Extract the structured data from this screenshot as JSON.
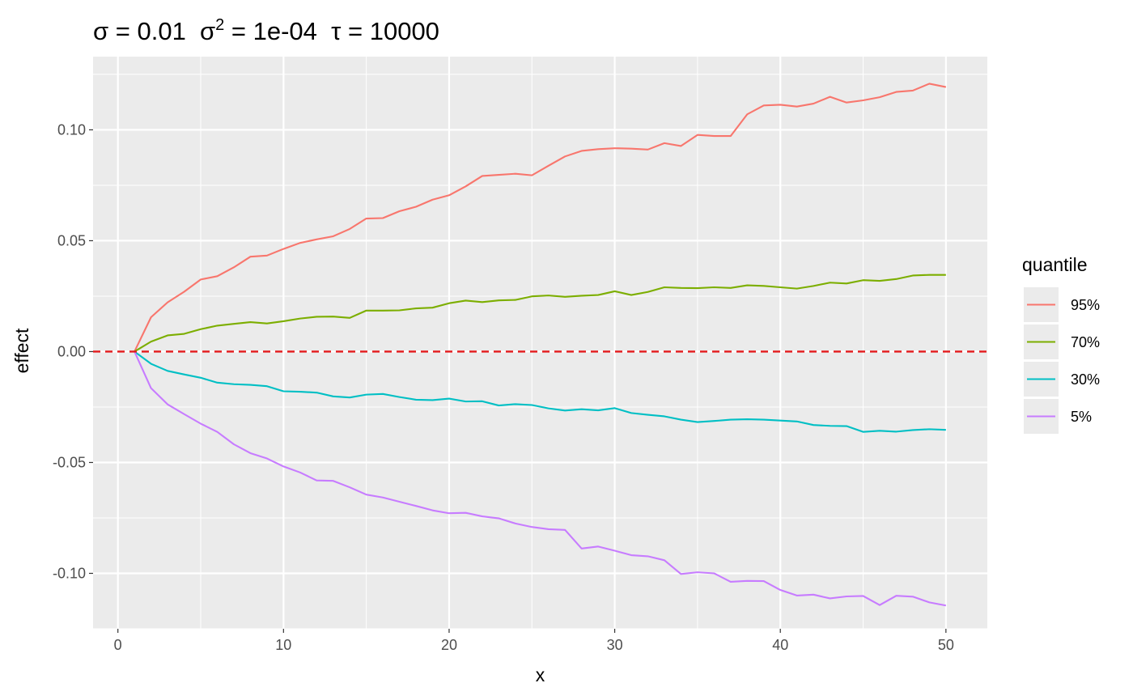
{
  "chart_data": {
    "type": "line",
    "title_parts": [
      "σ",
      " = 0.01  ",
      "σ",
      "2",
      " = 1e-04  ",
      "τ",
      " = 10000"
    ],
    "xlabel": "x",
    "ylabel": "effect",
    "xlim": [
      -1.5,
      52.5
    ],
    "ylim": [
      -0.125,
      0.133
    ],
    "x_ticks": [
      0,
      10,
      20,
      30,
      40,
      50
    ],
    "x_tick_labels": [
      "0",
      "10",
      "20",
      "30",
      "40",
      "50"
    ],
    "y_ticks": [
      -0.1,
      -0.05,
      0.0,
      0.05,
      0.1
    ],
    "y_tick_labels": [
      "-0.10",
      "-0.05",
      "0.00",
      "0.05",
      "0.10"
    ],
    "reference_line": {
      "y": 0,
      "color": "#e41a1c",
      "style": "dashed"
    },
    "legend": {
      "title": "quantile",
      "position": "right"
    },
    "grid": true,
    "series": [
      {
        "name": "95%",
        "color": "#f8766d",
        "x": [
          1,
          2,
          3,
          4,
          5,
          6,
          7,
          8,
          9,
          10,
          11,
          12,
          13,
          14,
          15,
          16,
          17,
          18,
          19,
          20,
          21,
          22,
          23,
          24,
          25,
          26,
          27,
          28,
          29,
          30,
          31,
          32,
          33,
          34,
          35,
          36,
          37,
          38,
          39,
          40,
          41,
          42,
          43,
          44,
          45,
          46,
          47,
          48,
          49,
          50
        ],
        "values": [
          0,
          0.0155,
          0.0222,
          0.027,
          0.0325,
          0.034,
          0.038,
          0.0428,
          0.0433,
          0.0463,
          0.049,
          0.0506,
          0.052,
          0.0553,
          0.06,
          0.0602,
          0.0633,
          0.0653,
          0.0685,
          0.0705,
          0.0745,
          0.0792,
          0.0797,
          0.0802,
          0.0795,
          0.0838,
          0.088,
          0.0905,
          0.0913,
          0.0917,
          0.0915,
          0.0911,
          0.094,
          0.0927,
          0.0977,
          0.0972,
          0.0972,
          0.107,
          0.111,
          0.1113,
          0.1105,
          0.1118,
          0.1149,
          0.1123,
          0.1133,
          0.1147,
          0.1171,
          0.1177,
          0.1208,
          0.1193
        ]
      },
      {
        "name": "70%",
        "color": "#7cae00",
        "x": [
          1,
          2,
          3,
          4,
          5,
          6,
          7,
          8,
          9,
          10,
          11,
          12,
          13,
          14,
          15,
          16,
          17,
          18,
          19,
          20,
          21,
          22,
          23,
          24,
          25,
          26,
          27,
          28,
          29,
          30,
          31,
          32,
          33,
          34,
          35,
          36,
          37,
          38,
          39,
          40,
          41,
          42,
          43,
          44,
          45,
          46,
          47,
          48,
          49,
          50
        ],
        "values": [
          0,
          0.0045,
          0.0073,
          0.008,
          0.0101,
          0.0117,
          0.0125,
          0.0133,
          0.0127,
          0.0137,
          0.0149,
          0.0157,
          0.0158,
          0.0152,
          0.0185,
          0.0185,
          0.0186,
          0.0195,
          0.0198,
          0.0218,
          0.023,
          0.0223,
          0.0231,
          0.0233,
          0.0249,
          0.0253,
          0.0247,
          0.0252,
          0.0255,
          0.0272,
          0.0255,
          0.0269,
          0.029,
          0.0287,
          0.0286,
          0.029,
          0.0287,
          0.0299,
          0.0296,
          0.029,
          0.0284,
          0.0296,
          0.0311,
          0.0307,
          0.0322,
          0.0319,
          0.0327,
          0.0343,
          0.0346,
          0.0346
        ]
      },
      {
        "name": "30%",
        "color": "#00bfc4",
        "x": [
          1,
          2,
          3,
          4,
          5,
          6,
          7,
          8,
          9,
          10,
          11,
          12,
          13,
          14,
          15,
          16,
          17,
          18,
          19,
          20,
          21,
          22,
          23,
          24,
          25,
          26,
          27,
          28,
          29,
          30,
          31,
          32,
          33,
          34,
          35,
          36,
          37,
          38,
          39,
          40,
          41,
          42,
          43,
          44,
          45,
          46,
          47,
          48,
          49,
          50
        ],
        "values": [
          0,
          -0.0055,
          -0.0087,
          -0.0103,
          -0.0118,
          -0.014,
          -0.0147,
          -0.015,
          -0.0156,
          -0.0179,
          -0.0181,
          -0.0185,
          -0.0202,
          -0.0207,
          -0.0194,
          -0.0191,
          -0.0205,
          -0.0217,
          -0.0219,
          -0.0212,
          -0.0225,
          -0.0224,
          -0.0243,
          -0.0237,
          -0.0241,
          -0.0256,
          -0.0266,
          -0.026,
          -0.0265,
          -0.0255,
          -0.0277,
          -0.0285,
          -0.0292,
          -0.0307,
          -0.0318,
          -0.0313,
          -0.0307,
          -0.0305,
          -0.0307,
          -0.0311,
          -0.0315,
          -0.0331,
          -0.0335,
          -0.0336,
          -0.0362,
          -0.0357,
          -0.0361,
          -0.0354,
          -0.035,
          -0.0353
        ]
      },
      {
        "name": "5%",
        "color": "#c77cff",
        "x": [
          1,
          2,
          3,
          4,
          5,
          6,
          7,
          8,
          9,
          10,
          11,
          12,
          13,
          14,
          15,
          16,
          17,
          18,
          19,
          20,
          21,
          22,
          23,
          24,
          25,
          26,
          27,
          28,
          29,
          30,
          31,
          32,
          33,
          34,
          35,
          36,
          37,
          38,
          39,
          40,
          41,
          42,
          43,
          44,
          45,
          46,
          47,
          48,
          49,
          50
        ],
        "values": [
          0,
          -0.0165,
          -0.0238,
          -0.0282,
          -0.0325,
          -0.0362,
          -0.0418,
          -0.0458,
          -0.0482,
          -0.0518,
          -0.0545,
          -0.0581,
          -0.0583,
          -0.0612,
          -0.0645,
          -0.0658,
          -0.0677,
          -0.0696,
          -0.0716,
          -0.0729,
          -0.0727,
          -0.0743,
          -0.0752,
          -0.0775,
          -0.0791,
          -0.0801,
          -0.0804,
          -0.0888,
          -0.0879,
          -0.0898,
          -0.0918,
          -0.0923,
          -0.0941,
          -0.1003,
          -0.0995,
          -0.1,
          -0.1038,
          -0.1034,
          -0.1035,
          -0.1075,
          -0.11,
          -0.1096,
          -0.1113,
          -0.1104,
          -0.1102,
          -0.1143,
          -0.1101,
          -0.1105,
          -0.1131,
          -0.1145
        ]
      }
    ]
  }
}
